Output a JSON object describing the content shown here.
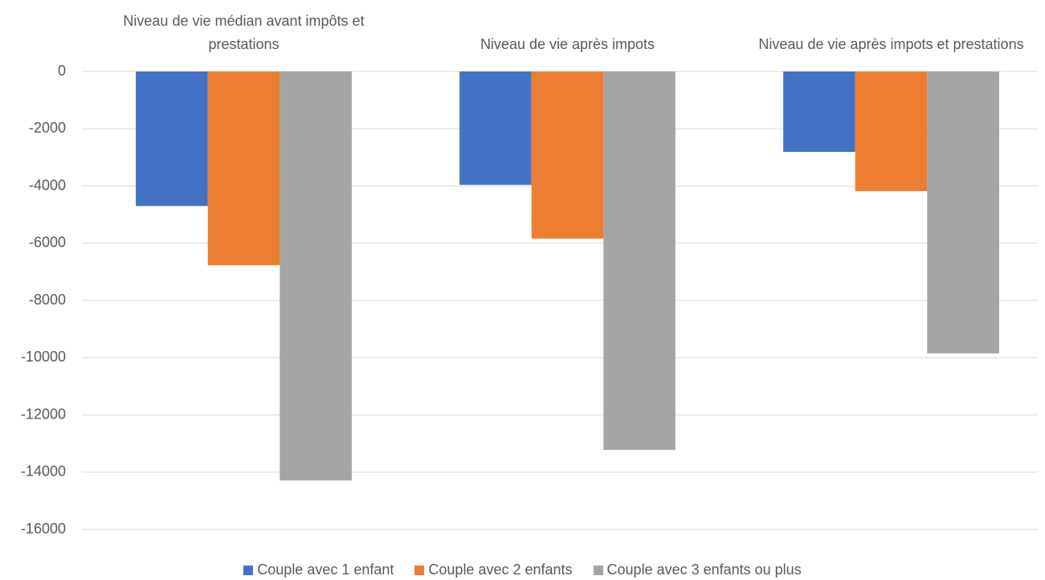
{
  "chart_data": {
    "type": "bar",
    "categories": [
      "Niveau de vie médian avant impôts et prestations",
      "Niveau de vie après impots",
      "Niveau de vie après impots et prestations"
    ],
    "series": [
      {
        "name": "Couple avec 1 enfant",
        "color": "#4472c4",
        "values": [
          -4700,
          -3960,
          -2810
        ]
      },
      {
        "name": "Couple avec 2 enfants",
        "color": "#ed7d31",
        "values": [
          -6770,
          -5840,
          -4180
        ]
      },
      {
        "name": "Couple avec 3 enfants ou plus",
        "color": "#a5a5a5",
        "values": [
          -14290,
          -13220,
          -9850
        ]
      }
    ],
    "ylim": [
      -16000,
      0
    ],
    "yticks": [
      0,
      -2000,
      -4000,
      -6000,
      -8000,
      -10000,
      -12000,
      -14000,
      -16000
    ],
    "grid": true,
    "legend": "bottom"
  }
}
